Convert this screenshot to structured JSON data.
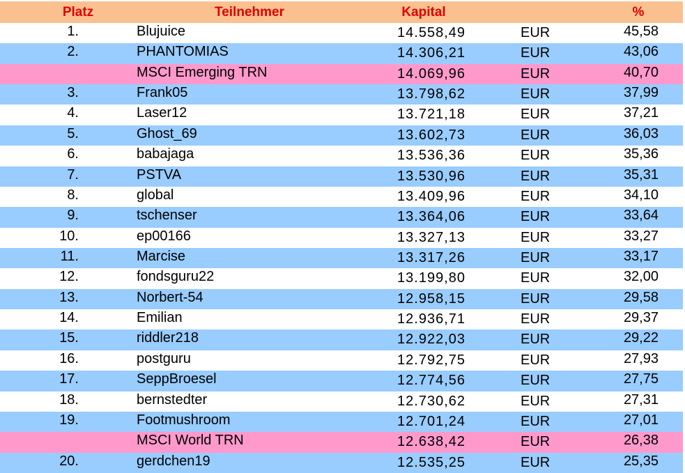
{
  "table": {
    "header": [
      "Platz",
      "Teilnehmer",
      "Kapital",
      "%"
    ],
    "rows": [
      [
        "1.",
        "Blujuice",
        "14.558,49",
        "EUR",
        "45,58"
      ],
      [
        "2.",
        "PHANTOMIAS",
        "14.306,21",
        "EUR",
        "43,06"
      ],
      [
        null,
        "MSCI Emerging TRN",
        "14.069,96",
        "EUR",
        "40,70"
      ],
      [
        "3.",
        "Frank05",
        "13.798,62",
        "EUR",
        "37,99"
      ],
      [
        "4.",
        "Laser12",
        "13.721,18",
        "EUR",
        "37,21"
      ],
      [
        "5.",
        "Ghost_69",
        "13.602,73",
        "EUR",
        "36,03"
      ],
      [
        "6.",
        "babajaga",
        "13.536,36",
        "EUR",
        "35,36"
      ],
      [
        "7.",
        "PSTVA",
        "13.530,96",
        "EUR",
        "35,31"
      ],
      [
        "8.",
        "global",
        "13.409,96",
        "EUR",
        "34,10"
      ],
      [
        "9.",
        "tschenser",
        "13.364,06",
        "EUR",
        "33,64"
      ],
      [
        "10.",
        "ep00166",
        "13.327,13",
        "EUR",
        "33,27"
      ],
      [
        "11.",
        "Marcise",
        "13.317,26",
        "EUR",
        "33,17"
      ],
      [
        "12.",
        "fondsguru22",
        "13.199,80",
        "EUR",
        "32,00"
      ],
      [
        "13.",
        "Norbert-54",
        "12.958,15",
        "EUR",
        "29,58"
      ],
      [
        "14.",
        "Emilian",
        "12.936,71",
        "EUR",
        "29,37"
      ],
      [
        "15.",
        "riddler218",
        "12.922,03",
        "EUR",
        "29,22"
      ],
      [
        "16.",
        "postguru",
        "12.792,75",
        "EUR",
        "27,93"
      ],
      [
        "17.",
        "SeppBroesel",
        "12.774,56",
        "EUR",
        "27,75"
      ],
      [
        "18.",
        "bernstedter",
        "12.730,62",
        "EUR",
        "27,31"
      ],
      [
        "19.",
        "Footmushroom",
        "12.701,24",
        "EUR",
        "27,01"
      ],
      [
        null,
        "MSCI World TRN",
        "12.638,42",
        "EUR",
        "26,38"
      ],
      [
        "20.",
        "gerdchen19",
        "12.535,25",
        "EUR",
        "25,35"
      ]
    ]
  }
}
